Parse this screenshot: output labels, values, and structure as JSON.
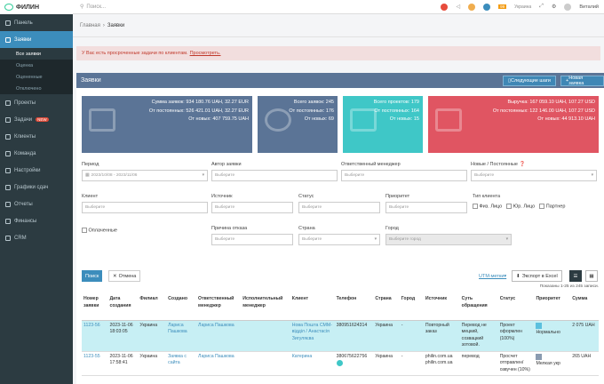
{
  "app": {
    "logo": "ФИЛИН"
  },
  "sidebar": {
    "items": [
      {
        "label": "Панель",
        "icon": "dashboard-icon"
      },
      {
        "label": "Заявки",
        "icon": "cart-icon",
        "active": true
      },
      {
        "label": "Все заявки",
        "sub": true,
        "current": true
      },
      {
        "label": "Оценка",
        "sub": true
      },
      {
        "label": "Оцененные",
        "sub": true
      },
      {
        "label": "Отключено",
        "sub": true
      },
      {
        "label": "Проекты",
        "icon": "folder-icon"
      },
      {
        "label": "Задачи",
        "icon": "tasks-icon",
        "badge": "NEW"
      },
      {
        "label": "Клиенты",
        "icon": "users-icon"
      },
      {
        "label": "Команда",
        "icon": "team-icon"
      },
      {
        "label": "Настройки",
        "icon": "gear-icon"
      },
      {
        "label": "Графики сдач",
        "icon": "calendar-icon"
      },
      {
        "label": "Отчеты",
        "icon": "chart-icon"
      },
      {
        "label": "Финансы",
        "icon": "money-icon"
      },
      {
        "label": "CRM",
        "icon": "crm-icon"
      }
    ]
  },
  "topbar": {
    "search_placeholder": "Поиск...",
    "lang": "Украина",
    "user": "Виталий",
    "notif": "99"
  },
  "breadcrumb": {
    "home": "Главная",
    "current": "Заявки"
  },
  "alert": {
    "text": "У Вас есть просроченные задачи по клиентам.",
    "link": "Просмотреть."
  },
  "panel": {
    "title": "Заявки",
    "btn_steps": "Следующие шаги",
    "btn_new": "Новая заявка"
  },
  "cards": [
    {
      "lines": [
        "Сумма заявок: 934 180.76 UAH, 32.27 EUR",
        "От постоянных: 526 421.01 UAH, 32.27 EUR",
        "От новых: 407 759.75 UAH"
      ],
      "color": "#5b7496"
    },
    {
      "lines": [
        "Всего заявок: 245",
        "От постоянных: 176",
        "От новых: 69"
      ],
      "color": "#5b7496"
    },
    {
      "lines": [
        "Всего проектов: 179",
        "От постоянных: 164",
        "От новых: 15"
      ],
      "color": "#3fc7c7"
    },
    {
      "lines": [
        "Выручка: 167 059.10 UAH, 107.27 USD",
        "От постоянных: 122 146.00 UAH, 107.27 USD",
        "От новых: 44 913.10 UAH"
      ],
      "color": "#e05562"
    }
  ],
  "filters": {
    "period_label": "Период",
    "period_value": "2023/10/08 - 2023/11/06",
    "author_label": "Автор заявки",
    "author_ph": "Выберите",
    "manager_label": "Ответственный менеджер",
    "manager_ph": "Выберите",
    "newold_label": "Новые / Постоянные",
    "newold_ph": "Выберите",
    "client_label": "Клиент",
    "client_ph": "Выберите",
    "source_label": "Источник",
    "source_ph": "Выберите",
    "status_label": "Статус",
    "status_ph": "Выберите",
    "priority_label": "Приоритет",
    "priority_ph": "Выберите",
    "ctype_label": "Тип клиента",
    "ctype_opts": [
      "Физ. Лицо",
      "Юр. Лицо",
      "Партнер"
    ],
    "paid_label": "Оплаченные",
    "reason_label": "Причина отказа",
    "reason_ph": "Выберите",
    "country_label": "Страна",
    "country_ph": "Выберите",
    "city_label": "Город",
    "city_ph": "Выберите город"
  },
  "actions": {
    "search": "Поиск",
    "cancel": "Отмена",
    "utm": "UTM-метки",
    "export": "Экспорт в Excel",
    "shown": "Показаны 1-25 из 245 записи."
  },
  "table": {
    "headers": [
      "Номер заявки",
      "Дата создания",
      "Филиал",
      "Создано",
      "Ответственный менеджер",
      "Исполнительный менеджер",
      "Клиент",
      "Телефон",
      "Страна",
      "Город",
      "Источник",
      "Суть обращения",
      "Статус",
      "Приоритет",
      "Сумма"
    ],
    "rows": [
      {
        "num": "1123-56",
        "date": "2023-11-06 18:03:05",
        "branch": "Украина",
        "created": "Лариса Пашкова",
        "resp": "Лариса Пашкова",
        "exec": "",
        "client": "Нова Пошта СММ-відділ / Анастасія Зигуляєва",
        "phone": "380951624314",
        "country": "Украина",
        "city": "-",
        "source": "Повторный заказ",
        "essence": "Перевод не мецкий, созвацкий зотовой.",
        "status": "Проект оформлен (100%)",
        "priority": "Нормально",
        "sum": "2 075 UAH"
      },
      {
        "num": "1123-55",
        "date": "2023-11-06 17:58:41",
        "branch": "Украина",
        "created": "Заявка с сайта",
        "resp": "Лариса Пашкова",
        "exec": "",
        "client": "Катерина",
        "phone": "380675622756",
        "country": "Украина",
        "city": "-",
        "source": "philin.com.ua philin.com.ua",
        "essence": "перевод",
        "status": "Просчет отправлен/ озвучен (10%)",
        "priority": "Мелкая укр",
        "sum": "265 UAH"
      }
    ]
  }
}
